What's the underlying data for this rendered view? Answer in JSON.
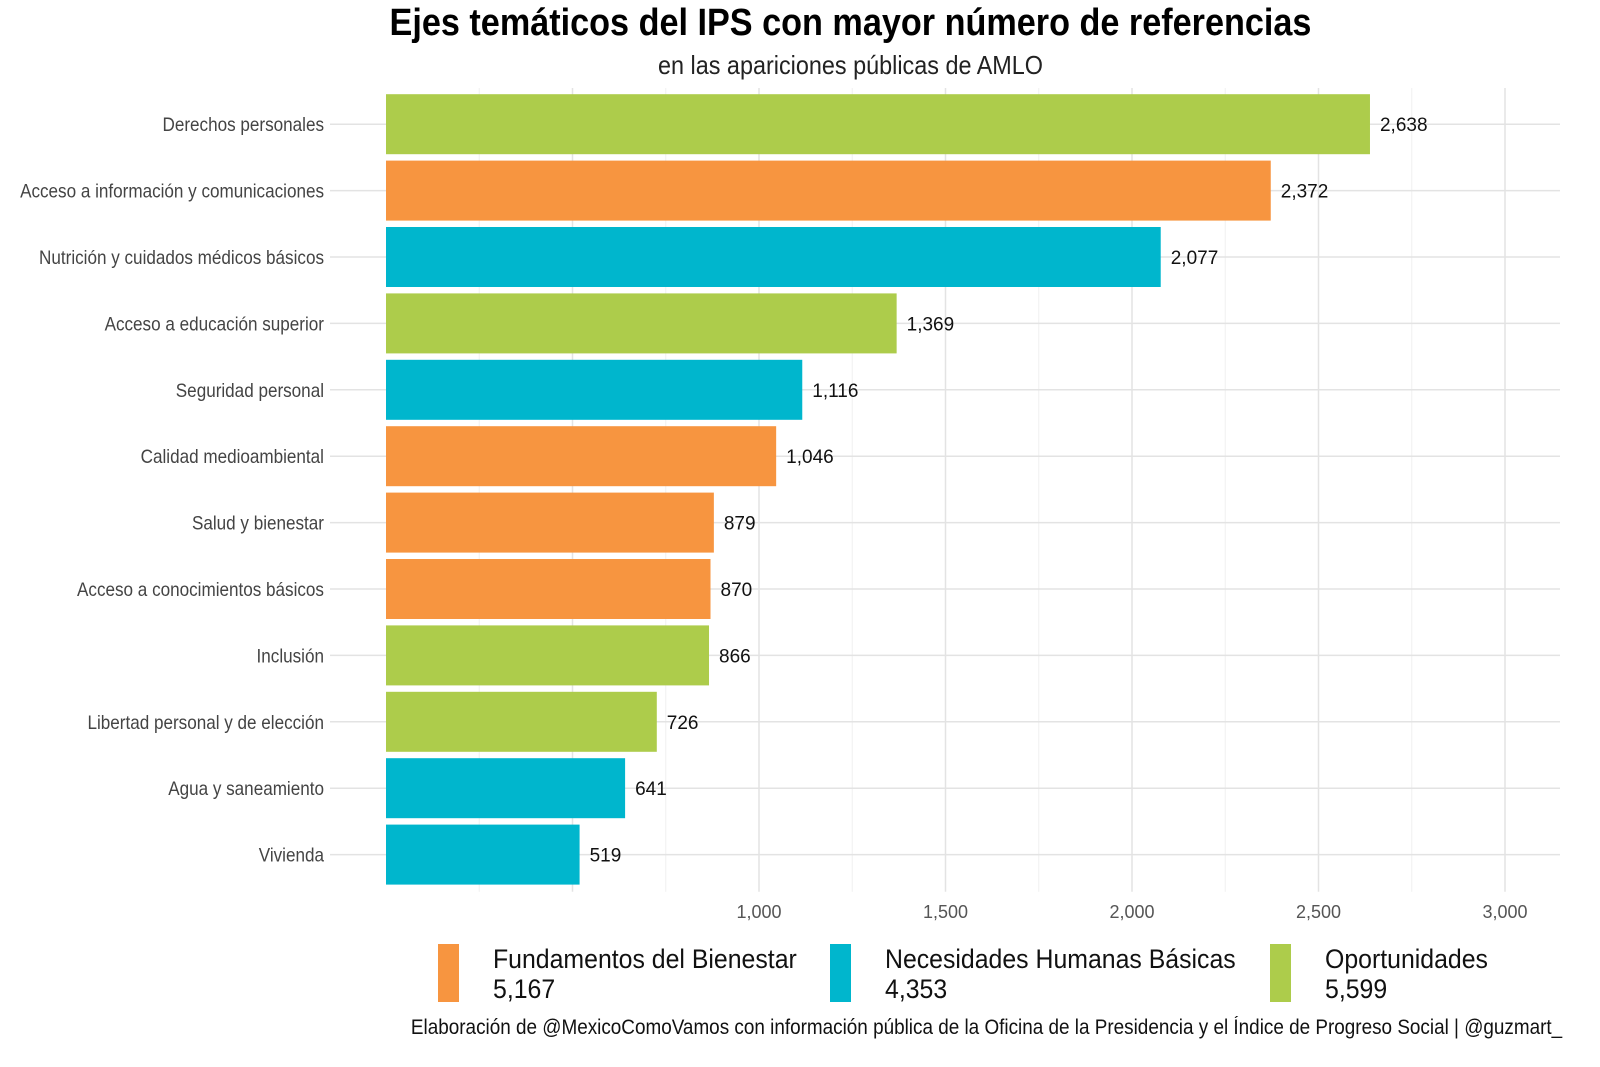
{
  "chart_data": {
    "type": "bar",
    "orientation": "horizontal",
    "title": "Ejes temáticos del IPS con mayor número de referencias",
    "subtitle": "en las apariciones públicas de AMLO",
    "categories": [
      "Derechos personales",
      "Acceso a información y comunicaciones",
      "Nutrición y cuidados médicos básicos",
      "Acceso a educación superior",
      "Seguridad personal",
      "Calidad medioambiental",
      "Salud y bienestar",
      "Acceso a conocimientos básicos",
      "Inclusión",
      "Libertad personal y de elección",
      "Agua y saneamiento",
      "Vivienda"
    ],
    "values": [
      2638,
      2372,
      2077,
      1369,
      1116,
      1046,
      879,
      870,
      866,
      726,
      641,
      519
    ],
    "value_labels": [
      "2,638",
      "2,372",
      "2,077",
      "1,369",
      "1,116",
      "1,046",
      "879",
      "870",
      "866",
      "726",
      "641",
      "519"
    ],
    "groups": [
      "Oportunidades",
      "Fundamentos del Bienestar",
      "Necesidades Humanas Básicas",
      "Oportunidades",
      "Necesidades Humanas Básicas",
      "Fundamentos del Bienestar",
      "Fundamentos del Bienestar",
      "Fundamentos del Bienestar",
      "Oportunidades",
      "Oportunidades",
      "Necesidades Humanas Básicas",
      "Necesidades Humanas Básicas"
    ],
    "xlim": [
      0,
      3100
    ],
    "x_ticks": [
      1000,
      1500,
      2000,
      2500,
      3000
    ],
    "x_tick_labels": [
      "1,000",
      "1,500",
      "2,000",
      "2,500",
      "3,000"
    ],
    "grid": true,
    "legend_position": "bottom",
    "legend": [
      {
        "name": "Fundamentos del Bienestar",
        "total": "5,167",
        "color": "#F79540"
      },
      {
        "name": "Necesidades Humanas Básicas",
        "total": "4,353",
        "color": "#00B6CD"
      },
      {
        "name": "Oportunidades",
        "total": "5,599",
        "color": "#ADCC4B"
      }
    ],
    "caption": "Elaboración de @MexicoComoVamos con información pública de la Oficina de la Presidencia y el Índice de Progreso Social | @guzmart_"
  }
}
